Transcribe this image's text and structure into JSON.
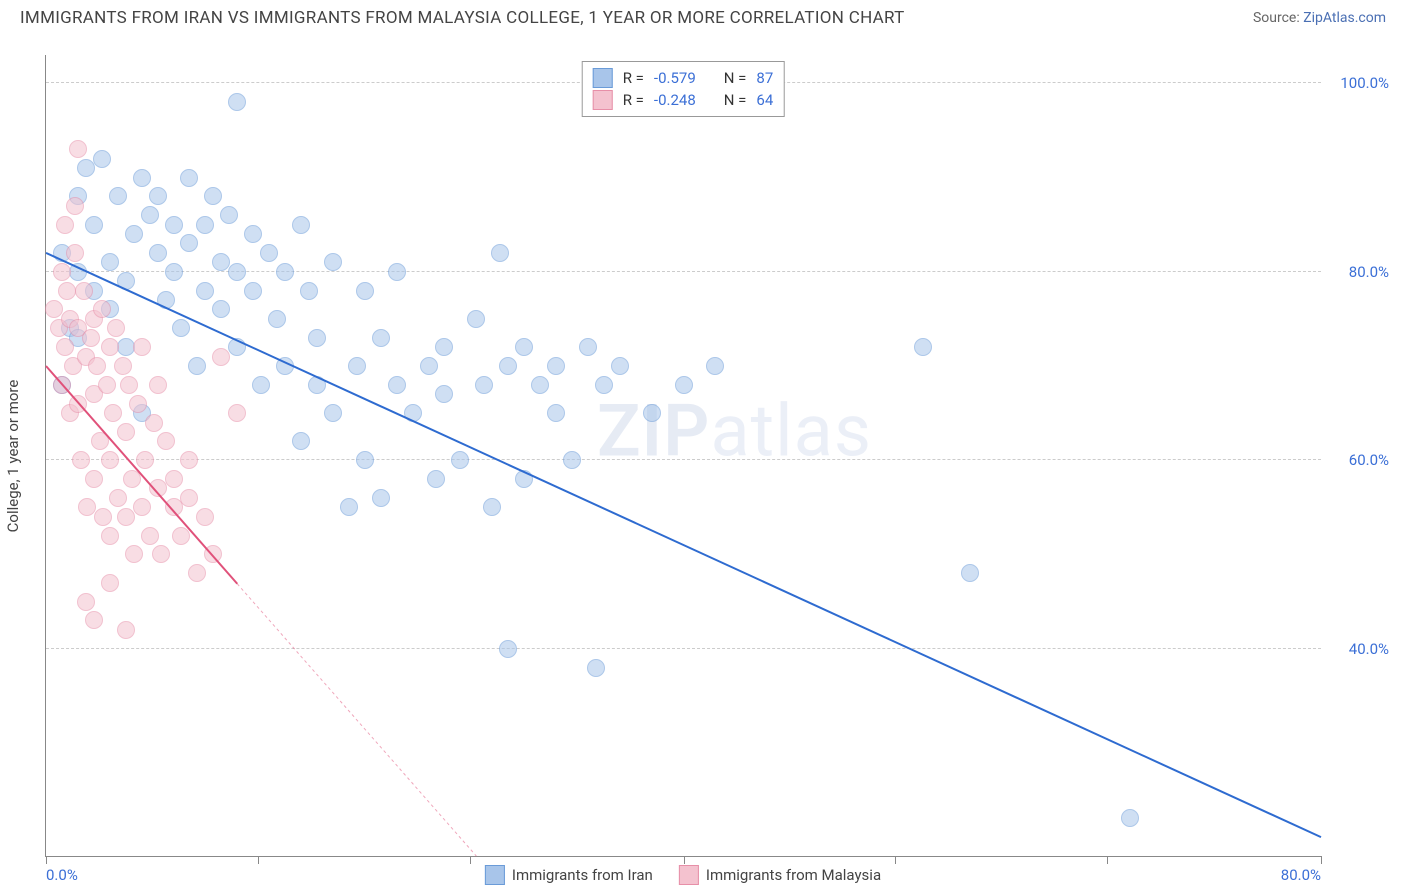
{
  "header": {
    "title": "IMMIGRANTS FROM IRAN VS IMMIGRANTS FROM MALAYSIA COLLEGE, 1 YEAR OR MORE CORRELATION CHART",
    "source_prefix": "Source: ",
    "source_link": "ZipAtlas.com"
  },
  "watermark": {
    "zip": "ZIP",
    "atlas": "atlas"
  },
  "chart": {
    "type": "scatter",
    "y_title": "College, 1 year or more",
    "xlim": [
      0,
      80
    ],
    "ylim": [
      18,
      103
    ],
    "x_ticks": [
      0,
      13.3,
      26.6,
      40,
      53.3,
      66.6,
      80
    ],
    "x_tick_labels": {
      "0": "0.0%",
      "80": "80.0%"
    },
    "y_gridlines": [
      40,
      60,
      80,
      100
    ],
    "y_tick_labels": {
      "40": "40.0%",
      "60": "60.0%",
      "80": "80.0%",
      "100": "100.0%"
    },
    "grid_color": "#cccccc",
    "background_color": "#ffffff",
    "axis_label_color": "#3b6fd6",
    "marker_radius": 9,
    "marker_opacity": 0.55,
    "series": [
      {
        "id": "iran",
        "label": "Immigrants from Iran",
        "color_fill": "#a8c5ea",
        "color_stroke": "#6a9bd8",
        "r": "-0.579",
        "n": "87",
        "trend": {
          "x1": 0,
          "y1": 82,
          "x2": 80,
          "y2": 20,
          "solid_until_x": 80,
          "color": "#2e6bd0",
          "width": 2
        },
        "points": [
          [
            1,
            82
          ],
          [
            1.5,
            74
          ],
          [
            2,
            80
          ],
          [
            2,
            88
          ],
          [
            2.5,
            91
          ],
          [
            3,
            78
          ],
          [
            3,
            85
          ],
          [
            3.5,
            92
          ],
          [
            4,
            76
          ],
          [
            4,
            81
          ],
          [
            4.5,
            88
          ],
          [
            5,
            79
          ],
          [
            5,
            72
          ],
          [
            5.5,
            84
          ],
          [
            6,
            90
          ],
          [
            6,
            65
          ],
          [
            6.5,
            86
          ],
          [
            7,
            82
          ],
          [
            7,
            88
          ],
          [
            7.5,
            77
          ],
          [
            8,
            85
          ],
          [
            8,
            80
          ],
          [
            8.5,
            74
          ],
          [
            9,
            83
          ],
          [
            9,
            90
          ],
          [
            9.5,
            70
          ],
          [
            10,
            78
          ],
          [
            10,
            85
          ],
          [
            10.5,
            88
          ],
          [
            11,
            81
          ],
          [
            11,
            76
          ],
          [
            11.5,
            86
          ],
          [
            12,
            72
          ],
          [
            12,
            80
          ],
          [
            12,
            98
          ],
          [
            13,
            84
          ],
          [
            13,
            78
          ],
          [
            13.5,
            68
          ],
          [
            14,
            82
          ],
          [
            14.5,
            75
          ],
          [
            15,
            80
          ],
          [
            15,
            70
          ],
          [
            16,
            85
          ],
          [
            16,
            62
          ],
          [
            16.5,
            78
          ],
          [
            17,
            73
          ],
          [
            17,
            68
          ],
          [
            18,
            81
          ],
          [
            18,
            65
          ],
          [
            19,
            55
          ],
          [
            19.5,
            70
          ],
          [
            20,
            78
          ],
          [
            20,
            60
          ],
          [
            21,
            56
          ],
          [
            21,
            73
          ],
          [
            22,
            68
          ],
          [
            22,
            80
          ],
          [
            23,
            65
          ],
          [
            24,
            70
          ],
          [
            24.5,
            58
          ],
          [
            25,
            72
          ],
          [
            25,
            67
          ],
          [
            26,
            60
          ],
          [
            27,
            75
          ],
          [
            27.5,
            68
          ],
          [
            28,
            55
          ],
          [
            28.5,
            82
          ],
          [
            29,
            70
          ],
          [
            29,
            40
          ],
          [
            30,
            58
          ],
          [
            30,
            72
          ],
          [
            31,
            68
          ],
          [
            32,
            65
          ],
          [
            32,
            70
          ],
          [
            33,
            60
          ],
          [
            34,
            72
          ],
          [
            34.5,
            38
          ],
          [
            35,
            68
          ],
          [
            36,
            70
          ],
          [
            38,
            65
          ],
          [
            40,
            68
          ],
          [
            42,
            70
          ],
          [
            55,
            72
          ],
          [
            58,
            48
          ],
          [
            68,
            22
          ],
          [
            1,
            68
          ],
          [
            2,
            73
          ]
        ]
      },
      {
        "id": "malaysia",
        "label": "Immigrants from Malaysia",
        "color_fill": "#f4c2cf",
        "color_stroke": "#e78fa8",
        "r": "-0.248",
        "n": "64",
        "trend": {
          "x1": 0,
          "y1": 70,
          "x2": 27,
          "y2": 18,
          "solid_until_x": 12,
          "color": "#e0517a",
          "width": 2
        },
        "points": [
          [
            0.5,
            76
          ],
          [
            0.8,
            74
          ],
          [
            1,
            80
          ],
          [
            1,
            68
          ],
          [
            1.2,
            72
          ],
          [
            1.3,
            78
          ],
          [
            1.5,
            65
          ],
          [
            1.5,
            75
          ],
          [
            1.7,
            70
          ],
          [
            1.8,
            82
          ],
          [
            2,
            66
          ],
          [
            2,
            74
          ],
          [
            2,
            93
          ],
          [
            2.2,
            60
          ],
          [
            2.4,
            78
          ],
          [
            2.5,
            71
          ],
          [
            2.6,
            55
          ],
          [
            2.8,
            73
          ],
          [
            3,
            67
          ],
          [
            3,
            75
          ],
          [
            3,
            58
          ],
          [
            3.2,
            70
          ],
          [
            3.4,
            62
          ],
          [
            3.5,
            76
          ],
          [
            3.6,
            54
          ],
          [
            3.8,
            68
          ],
          [
            4,
            72
          ],
          [
            4,
            60
          ],
          [
            4,
            52
          ],
          [
            4.2,
            65
          ],
          [
            4.4,
            74
          ],
          [
            4.5,
            56
          ],
          [
            4.8,
            70
          ],
          [
            5,
            63
          ],
          [
            5,
            54
          ],
          [
            5.2,
            68
          ],
          [
            5.4,
            58
          ],
          [
            5.5,
            50
          ],
          [
            5.8,
            66
          ],
          [
            6,
            72
          ],
          [
            6,
            55
          ],
          [
            6.2,
            60
          ],
          [
            6.5,
            52
          ],
          [
            6.8,
            64
          ],
          [
            7,
            57
          ],
          [
            7,
            68
          ],
          [
            7.2,
            50
          ],
          [
            7.5,
            62
          ],
          [
            8,
            55
          ],
          [
            8,
            58
          ],
          [
            8.5,
            52
          ],
          [
            9,
            56
          ],
          [
            9,
            60
          ],
          [
            9.5,
            48
          ],
          [
            10,
            54
          ],
          [
            10.5,
            50
          ],
          [
            2.5,
            45
          ],
          [
            3,
            43
          ],
          [
            11,
            71
          ],
          [
            12,
            65
          ],
          [
            4,
            47
          ],
          [
            5,
            42
          ],
          [
            1.2,
            85
          ],
          [
            1.8,
            87
          ]
        ]
      }
    ],
    "legend_top": {
      "r_label": "R =",
      "n_label": "N ="
    }
  }
}
